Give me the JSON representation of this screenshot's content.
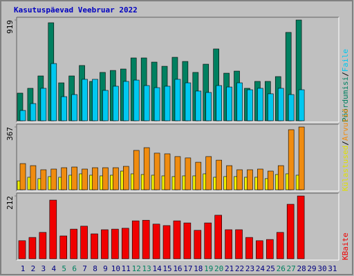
{
  "chart_data": [
    {
      "type": "bar",
      "title": "Kasutuspäevad Veebruar 2022",
      "separator": "/",
      "ylim": [
        0,
        919
      ],
      "yticks": [
        919
      ],
      "series": [
        {
          "name": "Pöördumisi",
          "color": "#008060",
          "values": [
            252,
            296,
            409,
            894,
            346,
            409,
            504,
            359,
            441,
            459,
            472,
            573,
            573,
            535,
            497,
            579,
            541,
            441,
            516,
            655,
            434,
            453,
            296,
            359,
            359,
            403,
            806,
            919,
            null,
            null,
            null
          ]
        },
        {
          "name": "Faile",
          "color": "#00c8f0",
          "values": [
            94,
            157,
            296,
            522,
            220,
            239,
            378,
            378,
            277,
            315,
            359,
            371,
            321,
            302,
            315,
            378,
            346,
            271,
            258,
            321,
            308,
            346,
            283,
            296,
            246,
            296,
            239,
            283,
            null,
            null,
            null
          ]
        }
      ]
    },
    {
      "type": "bar",
      "separator": "/",
      "ylim": [
        0,
        367
      ],
      "yticks": [
        367
      ],
      "series": [
        {
          "name": "Külastused",
          "color": "#f0f000",
          "values": [
            52,
            73,
            65,
            77,
            73,
            85,
            93,
            85,
            81,
            85,
            109,
            93,
            89,
            85,
            81,
            77,
            81,
            81,
            93,
            73,
            77,
            77,
            73,
            73,
            65,
            89,
            93,
            85,
            null,
            null,
            null
          ]
        },
        {
          "name": "Arvutid",
          "color": "#f08c10",
          "values": [
            153,
            141,
            117,
            121,
            129,
            133,
            121,
            129,
            129,
            129,
            137,
            230,
            246,
            214,
            210,
            194,
            186,
            161,
            194,
            173,
            141,
            117,
            117,
            121,
            109,
            141,
            351,
            367,
            null,
            null,
            null
          ]
        }
      ]
    },
    {
      "type": "bar",
      "ylim": [
        0,
        212
      ],
      "yticks": [
        212
      ],
      "series": [
        {
          "name": "KBaite",
          "color": "#f00000",
          "values": [
            61,
            72,
            89,
            198,
            77,
            100,
            110,
            84,
            98,
            100,
            103,
            128,
            130,
            117,
            112,
            128,
            121,
            96,
            121,
            147,
            98,
            98,
            72,
            61,
            65,
            89,
            184,
            212,
            null,
            null,
            null
          ]
        }
      ],
      "categories": [
        "1",
        "2",
        "3",
        "4",
        "5",
        "6",
        "7",
        "8",
        "9",
        "10",
        "11",
        "12",
        "13",
        "14",
        "15",
        "16",
        "17",
        "18",
        "19",
        "20",
        "21",
        "22",
        "23",
        "24",
        "25",
        "26",
        "27",
        "28",
        "29",
        "30",
        "31"
      ],
      "category_colors": [
        "#000080",
        "#000080",
        "#000080",
        "#000080",
        "#008060",
        "#008060",
        "#000080",
        "#000080",
        "#000080",
        "#000080",
        "#000080",
        "#008060",
        "#008060",
        "#000080",
        "#000080",
        "#000080",
        "#000080",
        "#000080",
        "#008060",
        "#008060",
        "#000080",
        "#000080",
        "#000080",
        "#000080",
        "#000080",
        "#008060",
        "#008060",
        "#000080",
        "#000080",
        "#000080",
        "#000080"
      ]
    }
  ]
}
